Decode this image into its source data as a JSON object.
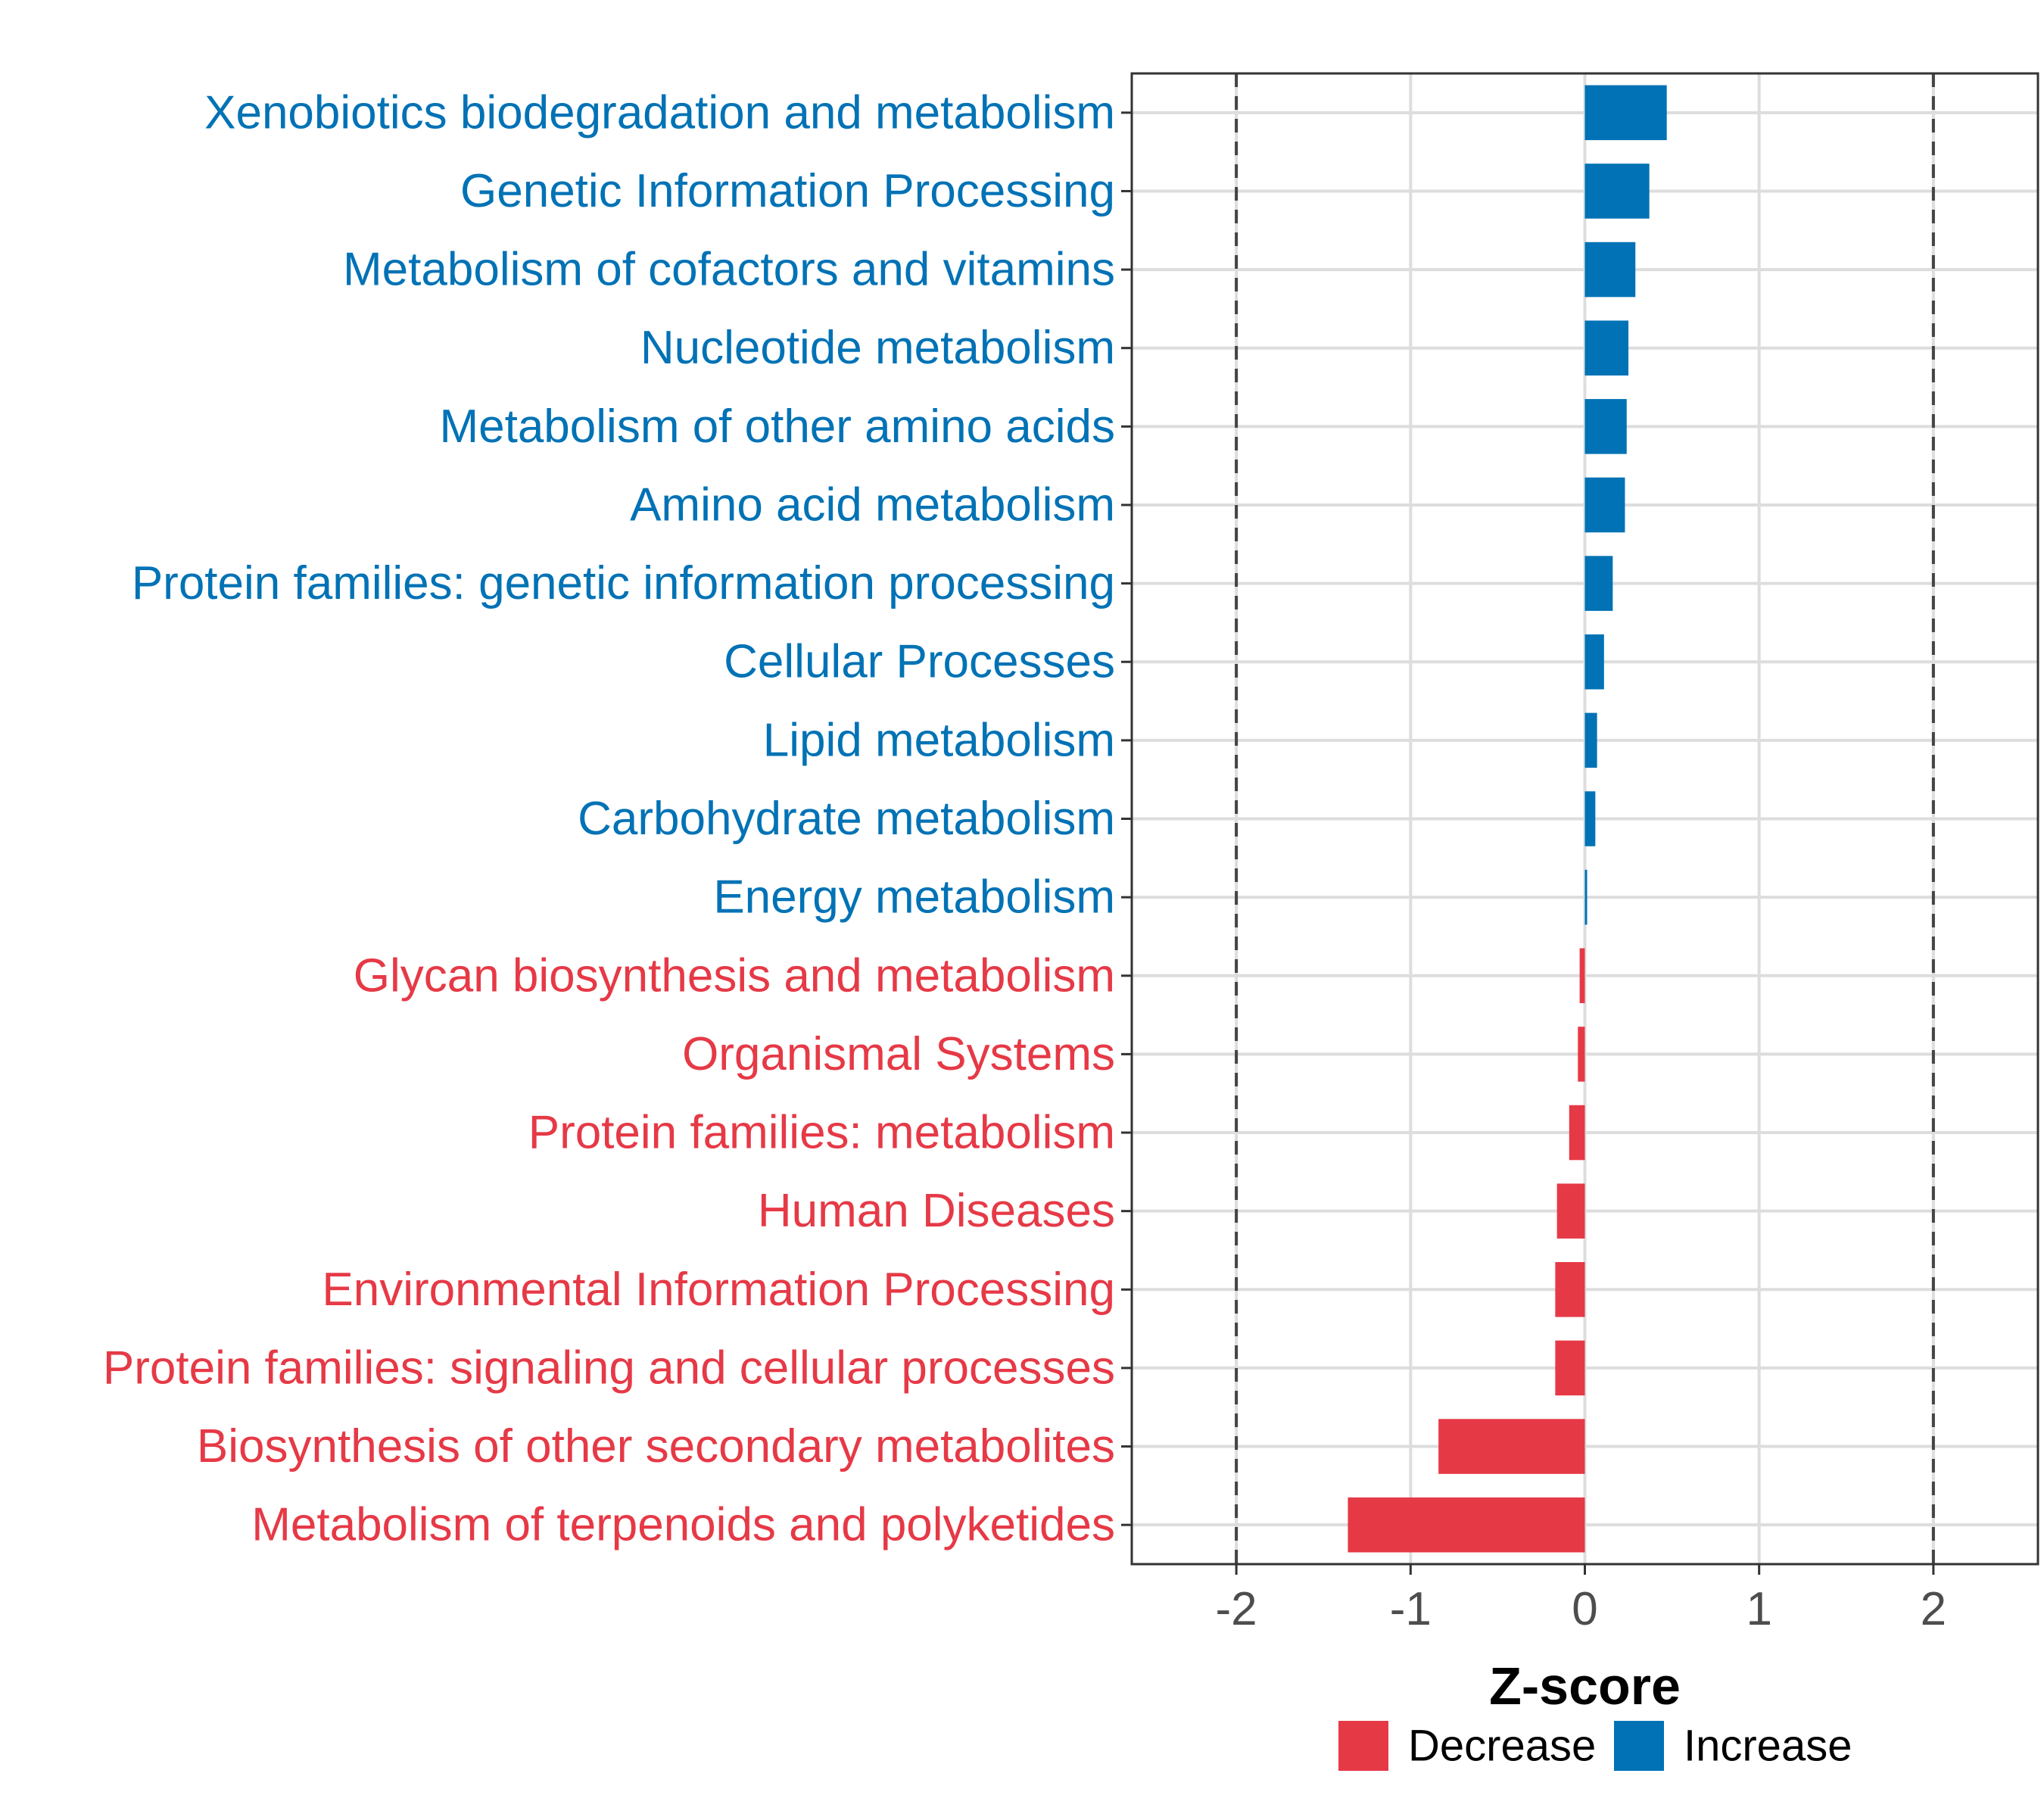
{
  "chart_data": {
    "type": "bar",
    "orientation": "horizontal",
    "xlabel": "Z-score",
    "ylabel": "",
    "xlim": [
      -2.6,
      2.6
    ],
    "x_ticks": [
      -2,
      -1,
      0,
      1,
      2
    ],
    "x_tick_labels": [
      "-2",
      "-1",
      "0",
      "1",
      "2"
    ],
    "reference_lines": [
      -2,
      2
    ],
    "grid": true,
    "legend_position": "bottom",
    "colors": {
      "Decrease": "#e63946",
      "Increase": "#0072b5"
    },
    "categories": [
      "Xenobiotics biodegradation and metabolism",
      "Genetic Information Processing",
      "Metabolism of cofactors and vitamins",
      "Nucleotide metabolism",
      "Metabolism of other amino acids",
      "Amino acid metabolism",
      "Protein families: genetic information processing",
      "Cellular Processes",
      "Lipid metabolism",
      "Carbohydrate metabolism",
      "Energy metabolism",
      "Glycan biosynthesis and metabolism",
      "Organismal Systems",
      "Protein families: metabolism",
      "Human Diseases",
      "Environmental Information Processing",
      "Protein families: signaling and cellular processes",
      "Biosynthesis of other secondary metabolites",
      "Metabolism of terpenoids and polyketides"
    ],
    "values": [
      0.47,
      0.37,
      0.29,
      0.25,
      0.24,
      0.23,
      0.16,
      0.11,
      0.07,
      0.06,
      0.01,
      -0.03,
      -0.04,
      -0.09,
      -0.16,
      -0.17,
      -0.17,
      -0.84,
      -1.36
    ],
    "groups": [
      "Increase",
      "Increase",
      "Increase",
      "Increase",
      "Increase",
      "Increase",
      "Increase",
      "Increase",
      "Increase",
      "Increase",
      "Increase",
      "Decrease",
      "Decrease",
      "Decrease",
      "Decrease",
      "Decrease",
      "Decrease",
      "Decrease",
      "Decrease"
    ],
    "legend": [
      {
        "label": "Decrease",
        "color": "#e63946"
      },
      {
        "label": "Increase",
        "color": "#0072b5"
      }
    ]
  }
}
